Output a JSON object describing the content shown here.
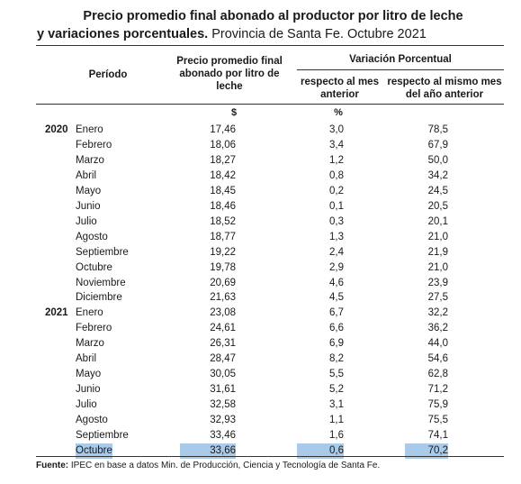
{
  "title": {
    "line1": "Precio promedio final abonado al productor por litro de leche",
    "line2_bold": "y variaciones porcentuales.",
    "line2_rest": " Provincia de Santa Fe. Octubre 2021"
  },
  "headers": {
    "periodo": "Período",
    "precio": "Precio promedio final abonado por litro de leche",
    "variacion": "Variación Porcentual",
    "mes_anterior": "respecto al mes anterior",
    "anio_anterior": "respecto al mismo mes del año anterior",
    "unit_precio": "$",
    "unit_pct": "%"
  },
  "rows": [
    {
      "year": "2020",
      "month": "Enero",
      "price": "17,46",
      "vm": "3,0",
      "va": "78,5"
    },
    {
      "year": "",
      "month": "Febrero",
      "price": "18,06",
      "vm": "3,4",
      "va": "67,9"
    },
    {
      "year": "",
      "month": "Marzo",
      "price": "18,27",
      "vm": "1,2",
      "va": "50,0"
    },
    {
      "year": "",
      "month": "Abril",
      "price": "18,42",
      "vm": "0,8",
      "va": "34,2"
    },
    {
      "year": "",
      "month": "Mayo",
      "price": "18,45",
      "vm": "0,2",
      "va": "24,5"
    },
    {
      "year": "",
      "month": "Junio",
      "price": "18,46",
      "vm": "0,1",
      "va": "20,5"
    },
    {
      "year": "",
      "month": "Julio",
      "price": "18,52",
      "vm": "0,3",
      "va": "20,1"
    },
    {
      "year": "",
      "month": "Agosto",
      "price": "18,77",
      "vm": "1,3",
      "va": "21,0"
    },
    {
      "year": "",
      "month": "Septiembre",
      "price": "19,22",
      "vm": "2,4",
      "va": "21,9"
    },
    {
      "year": "",
      "month": "Octubre",
      "price": "19,78",
      "vm": "2,9",
      "va": "21,0"
    },
    {
      "year": "",
      "month": "Noviembre",
      "price": "20,69",
      "vm": "4,6",
      "va": "23,9"
    },
    {
      "year": "",
      "month": "Diciembre",
      "price": "21,63",
      "vm": "4,5",
      "va": "27,5"
    },
    {
      "year": "2021",
      "month": "Enero",
      "price": "23,08",
      "vm": "6,7",
      "va": "32,2"
    },
    {
      "year": "",
      "month": "Febrero",
      "price": "24,61",
      "vm": "6,6",
      "va": "36,2"
    },
    {
      "year": "",
      "month": "Marzo",
      "price": "26,31",
      "vm": "6,9",
      "va": "44,0"
    },
    {
      "year": "",
      "month": "Abril",
      "price": "28,47",
      "vm": "8,2",
      "va": "54,6"
    },
    {
      "year": "",
      "month": "Mayo",
      "price": "30,05",
      "vm": "5,5",
      "va": "62,8"
    },
    {
      "year": "",
      "month": "Junio",
      "price": "31,61",
      "vm": "5,2",
      "va": "71,2"
    },
    {
      "year": "",
      "month": "Julio",
      "price": "32,58",
      "vm": "3,1",
      "va": "75,9"
    },
    {
      "year": "",
      "month": "Agosto",
      "price": "32,93",
      "vm": "1,1",
      "va": "75,5"
    },
    {
      "year": "",
      "month": "Septiembre",
      "price": "33,46",
      "vm": "1,6",
      "va": "74,1"
    },
    {
      "year": "",
      "month": "Octubre",
      "price": "33,66",
      "vm": "0,6",
      "va": "70,2",
      "highlight": true
    }
  ],
  "source": {
    "label": "Fuente:",
    "text": " IPEC en base a datos Min. de Producción, Ciencia y Tecnología de Santa Fe."
  },
  "colors": {
    "highlight": "#a9cbe9"
  }
}
